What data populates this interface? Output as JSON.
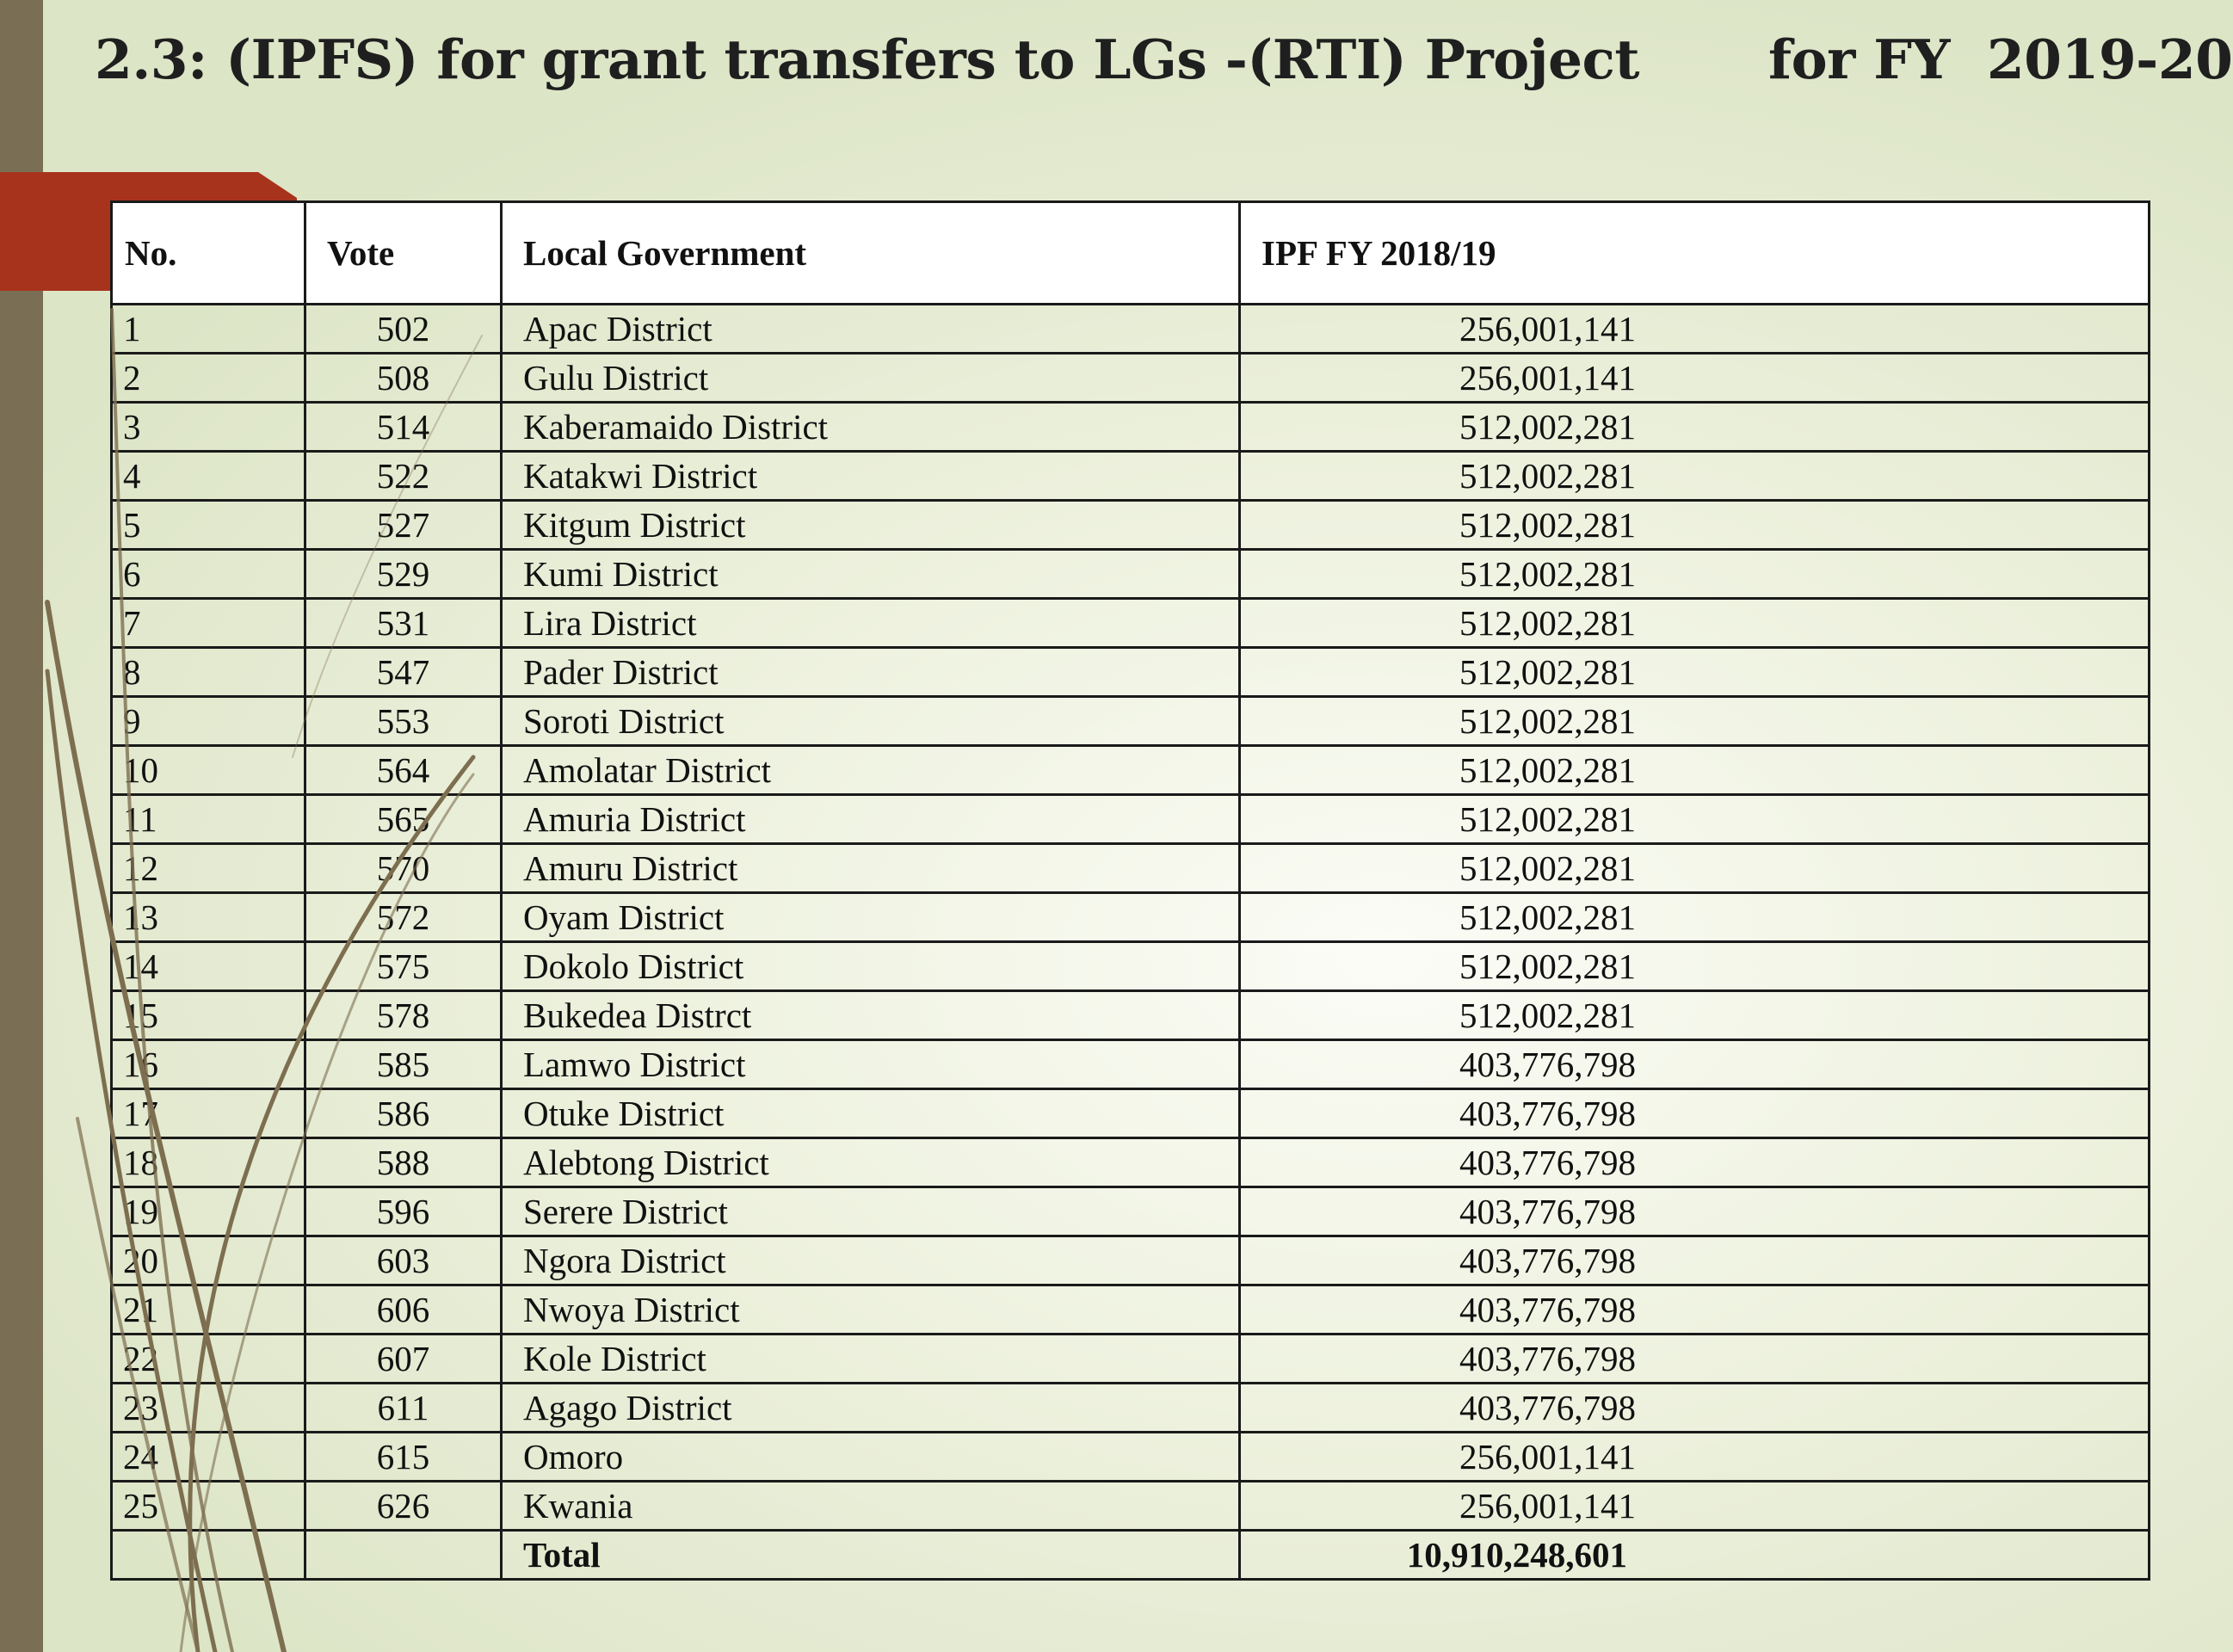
{
  "title": "2.3: (IPFS) for grant transfers to LGs -(RTI) Project       for FY  2019-20",
  "table": {
    "headers": [
      "No.",
      "Vote",
      "Local Government",
      "IPF FY 2018/19"
    ],
    "rows": [
      [
        "1",
        "502",
        "Apac District",
        "256,001,141"
      ],
      [
        "2",
        "508",
        "Gulu District",
        "256,001,141"
      ],
      [
        "3",
        "514",
        "Kaberamaido District",
        "512,002,281"
      ],
      [
        "4",
        "522",
        "Katakwi District",
        "512,002,281"
      ],
      [
        "5",
        "527",
        "Kitgum District",
        "512,002,281"
      ],
      [
        "6",
        "529",
        "Kumi District",
        "512,002,281"
      ],
      [
        "7",
        "531",
        "Lira District",
        "512,002,281"
      ],
      [
        "8",
        "547",
        "Pader District",
        "512,002,281"
      ],
      [
        "9",
        "553",
        "Soroti District",
        "512,002,281"
      ],
      [
        "10",
        "564",
        "Amolatar District",
        "512,002,281"
      ],
      [
        "11",
        "565",
        "Amuria District",
        "512,002,281"
      ],
      [
        "12",
        "570",
        "Amuru District",
        "512,002,281"
      ],
      [
        "13",
        "572",
        "Oyam District",
        "512,002,281"
      ],
      [
        "14",
        "575",
        "Dokolo District",
        "512,002,281"
      ],
      [
        "15",
        "578",
        "Bukedea Distrct",
        "512,002,281"
      ],
      [
        "16",
        "585",
        "Lamwo District",
        "403,776,798"
      ],
      [
        "17",
        "586",
        "Otuke District",
        "403,776,798"
      ],
      [
        "18",
        "588",
        "Alebtong District",
        "403,776,798"
      ],
      [
        "19",
        "596",
        "Serere District",
        "403,776,798"
      ],
      [
        "20",
        "603",
        "Ngora District",
        "403,776,798"
      ],
      [
        "21",
        "606",
        "Nwoya District",
        "403,776,798"
      ],
      [
        "22",
        "607",
        "Kole District",
        "403,776,798"
      ],
      [
        "23",
        "611",
        "Agago District",
        "403,776,798"
      ],
      [
        "24",
        "615",
        "Omoro",
        "256,001,141"
      ],
      [
        "25",
        "626",
        "Kwania",
        "256,001,141"
      ]
    ],
    "total": {
      "no": "",
      "vote": "",
      "label": "Total",
      "value": "10,910,248,601"
    }
  },
  "colors": {
    "left_bar": "#7a6f55",
    "accent_tab": "#a8331c",
    "header_bg": "#ffffff",
    "border": "#1a1a1a"
  }
}
